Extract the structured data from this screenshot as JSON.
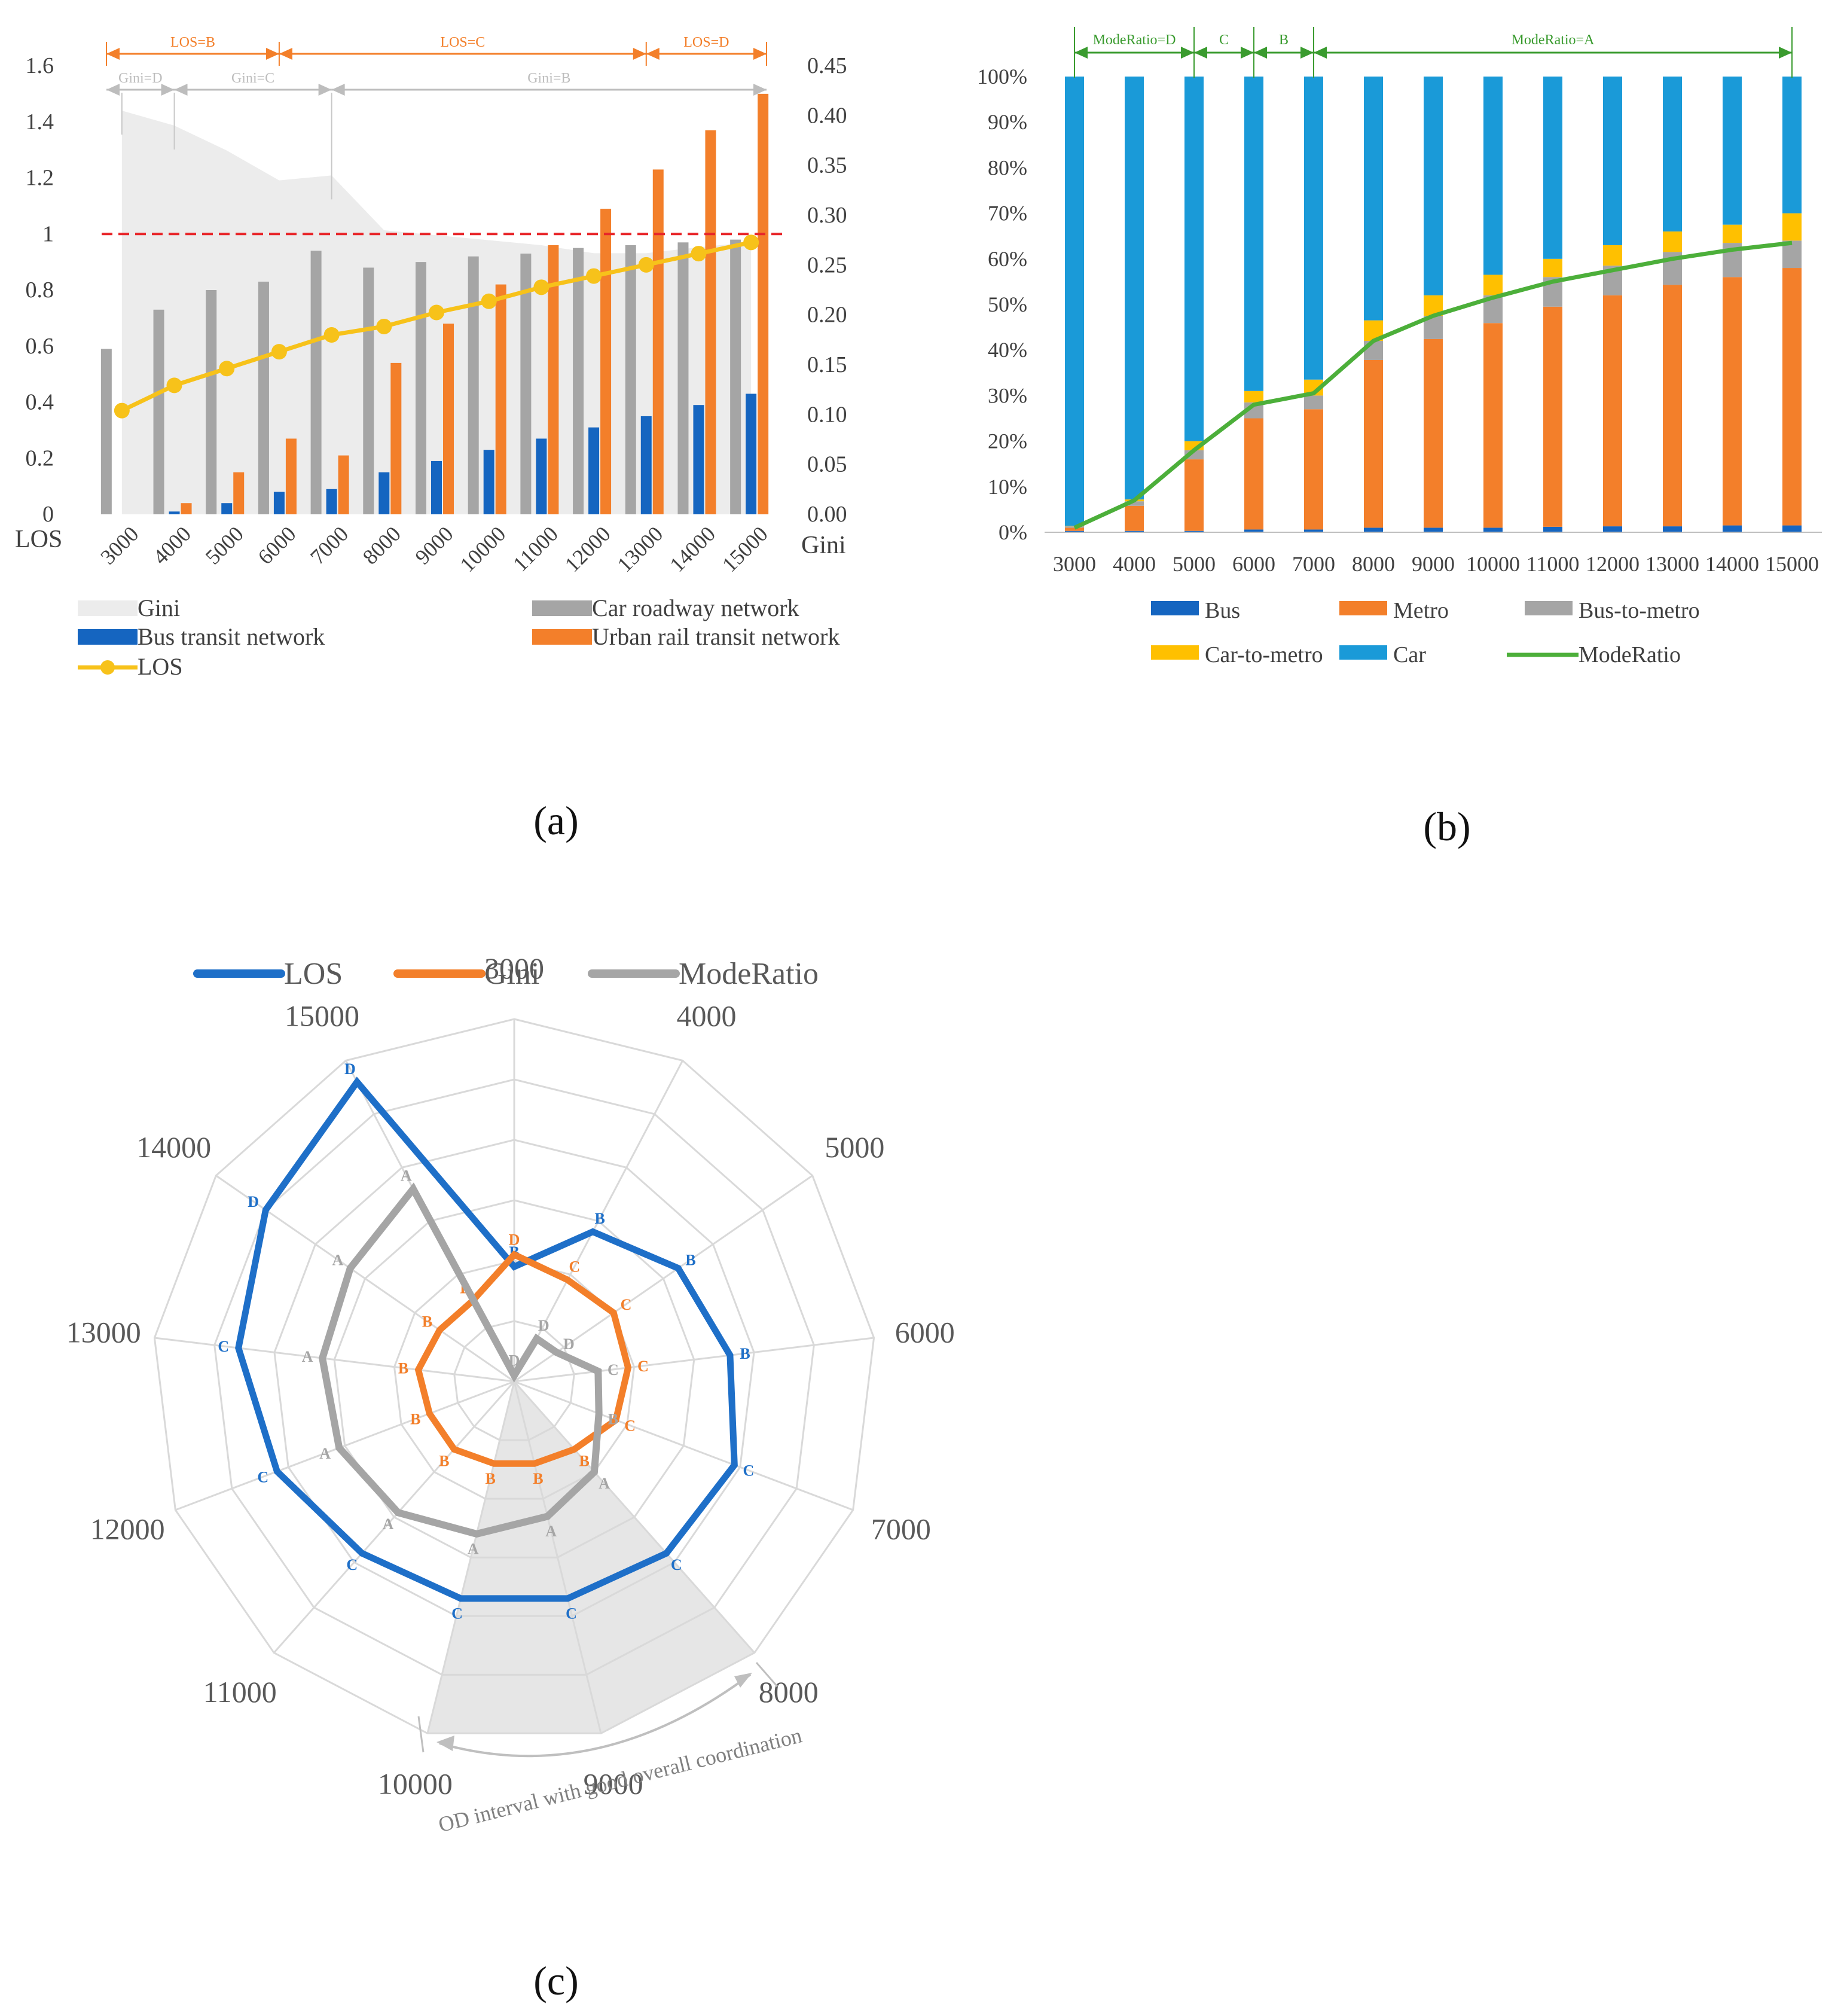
{
  "panels": {
    "a": "(a)",
    "b": "(b)",
    "c": "(c)"
  },
  "chart_data": [
    {
      "id": "a",
      "type": "bar",
      "title": "",
      "xlabel": "",
      "ylabel_left": "LOS",
      "ylabel_right": "Gini",
      "categories": [
        "3000",
        "4000",
        "5000",
        "6000",
        "7000",
        "8000",
        "9000",
        "10000",
        "11000",
        "12000",
        "13000",
        "14000",
        "15000"
      ],
      "ylim_left": [
        0,
        1.6
      ],
      "ylim_right": [
        0,
        0.45
      ],
      "left_ticks": [
        "0",
        "0.2",
        "0.4",
        "0.6",
        "0.8",
        "1",
        "1.2",
        "1.4",
        "1.6"
      ],
      "right_ticks": [
        "0.00",
        "0.05",
        "0.10",
        "0.15",
        "0.20",
        "0.25",
        "0.30",
        "0.35",
        "0.40",
        "0.45"
      ],
      "reference_line": 1,
      "series": [
        {
          "name": "Gini",
          "kind": "area",
          "axis": "right",
          "color": "#ececec",
          "values": [
            0.405,
            0.39,
            0.365,
            0.335,
            0.34,
            0.285,
            0.28,
            0.275,
            0.27,
            0.262,
            0.262,
            0.268,
            0.273
          ]
        },
        {
          "name": "Car roadway network",
          "kind": "bar",
          "axis": "left",
          "color": "#a5a5a5",
          "values": [
            0.59,
            0.73,
            0.8,
            0.83,
            0.94,
            0.88,
            0.9,
            0.92,
            0.93,
            0.95,
            0.96,
            0.97,
            0.98
          ]
        },
        {
          "name": "Bus transit network",
          "kind": "bar",
          "axis": "left",
          "color": "#1565c0",
          "values": [
            0.0,
            0.01,
            0.04,
            0.08,
            0.09,
            0.15,
            0.19,
            0.23,
            0.27,
            0.31,
            0.35,
            0.39,
            0.43
          ]
        },
        {
          "name": "Urban rail transit network",
          "kind": "bar",
          "axis": "left",
          "color": "#f37f2a",
          "values": [
            0.0,
            0.04,
            0.15,
            0.27,
            0.21,
            0.54,
            0.68,
            0.82,
            0.96,
            1.09,
            1.23,
            1.37,
            1.5
          ]
        },
        {
          "name": "LOS",
          "kind": "line",
          "axis": "left",
          "color": "#f7c21a",
          "values": [
            0.37,
            0.46,
            0.52,
            0.58,
            0.64,
            0.67,
            0.72,
            0.76,
            0.81,
            0.85,
            0.89,
            0.93,
            0.97
          ]
        }
      ],
      "los_intervals": [
        {
          "label": "LOS=B",
          "from": "3000",
          "to": "6000"
        },
        {
          "label": "LOS=C",
          "from": "6000",
          "to": "13000"
        },
        {
          "label": "LOS=D",
          "from": "13000",
          "to": "15000"
        }
      ],
      "gini_intervals": [
        {
          "label": "Gini=D",
          "from": "3000",
          "to": "4000"
        },
        {
          "label": "Gini=C",
          "from": "4000",
          "to": "7000"
        },
        {
          "label": "Gini=B",
          "from": "7000",
          "to": "15000"
        }
      ],
      "legend": [
        "Gini",
        "Car roadway network",
        "Bus transit network",
        "Urban rail transit network",
        "LOS"
      ]
    },
    {
      "id": "b",
      "type": "bar",
      "stacked": true,
      "title": "",
      "xlabel": "",
      "ylabel": "",
      "categories": [
        "3000",
        "4000",
        "5000",
        "6000",
        "7000",
        "8000",
        "9000",
        "10000",
        "11000",
        "12000",
        "13000",
        "14000",
        "15000"
      ],
      "ylim": [
        0,
        100
      ],
      "y_ticks": [
        "0%",
        "10%",
        "20%",
        "30%",
        "40%",
        "50%",
        "60%",
        "70%",
        "80%",
        "90%",
        "100%"
      ],
      "series": [
        {
          "name": "Bus",
          "color": "#1565c0",
          "values": [
            0.3,
            0.3,
            0.3,
            0.6,
            0.6,
            1.0,
            1.0,
            1.0,
            1.2,
            1.3,
            1.3,
            1.5,
            1.5
          ]
        },
        {
          "name": "Metro",
          "color": "#f37f2a",
          "values": [
            0.7,
            5.5,
            15.7,
            24.4,
            26.4,
            36.8,
            41.4,
            44.9,
            48.3,
            50.7,
            53.0,
            54.5,
            56.5
          ]
        },
        {
          "name": "Bus-to-metro",
          "color": "#a5a5a5",
          "values": [
            0.3,
            1.0,
            2.0,
            3.5,
            3.0,
            4.2,
            5.1,
            6.1,
            6.5,
            6.5,
            7.2,
            7.5,
            6.0
          ]
        },
        {
          "name": "Car-to-metro",
          "color": "#ffc000",
          "values": [
            0.1,
            0.4,
            2.0,
            2.5,
            3.5,
            4.5,
            4.5,
            4.5,
            4.0,
            4.5,
            4.5,
            4.0,
            6.0
          ]
        },
        {
          "name": "Car",
          "color": "#1a9ad8",
          "values": [
            98.6,
            92.8,
            80.0,
            69.0,
            66.5,
            53.5,
            48.0,
            43.5,
            40.0,
            37.0,
            34.0,
            32.5,
            30.0
          ]
        }
      ],
      "lines": [
        {
          "name": "ModeRatio",
          "color": "#4caf3a",
          "values": [
            1.0,
            7.0,
            18.0,
            28.0,
            30.5,
            42.0,
            47.5,
            51.5,
            55.0,
            57.5,
            60.0,
            62.0,
            63.5
          ]
        }
      ],
      "moderatio_intervals": [
        {
          "label": "ModeRatio=D",
          "from": "3000",
          "to": "5000"
        },
        {
          "label": "C",
          "from": "5000",
          "to": "6000"
        },
        {
          "label": "B",
          "from": "6000",
          "to": "7000"
        },
        {
          "label": "ModeRatio=A",
          "from": "7000",
          "to": "15000"
        }
      ],
      "legend": [
        "Bus",
        "Metro",
        "Bus-to-metro",
        "Car-to-metro",
        "Car",
        "ModeRatio"
      ]
    },
    {
      "id": "c",
      "type": "radar",
      "title": "",
      "axes": [
        "3000",
        "4000",
        "5000",
        "6000",
        "7000",
        "8000",
        "9000",
        "10000",
        "11000",
        "12000",
        "13000",
        "14000",
        "15000"
      ],
      "rings": 6,
      "series": [
        {
          "name": "LOS",
          "color": "#1e6fc8",
          "values": [
            1.9,
            2.8,
            3.3,
            3.6,
            3.9,
            3.8,
            3.7,
            3.7,
            3.8,
            4.2,
            4.6,
            5.0,
            5.6
          ],
          "grades": [
            "B",
            "B",
            "B",
            "B",
            "C",
            "C",
            "C",
            "C",
            "C",
            "C",
            "C",
            "D",
            "D"
          ]
        },
        {
          "name": "Gini",
          "color": "#f37f2a",
          "values": [
            2.1,
            1.9,
            2.0,
            1.9,
            1.8,
            1.5,
            1.4,
            1.4,
            1.5,
            1.5,
            1.6,
            1.5,
            1.5
          ],
          "grades": [
            "D",
            "C",
            "C",
            "C",
            "C",
            "B",
            "B",
            "B",
            "B",
            "B",
            "B",
            "B",
            "B"
          ]
        },
        {
          "name": "ModeRatio",
          "color": "#a5a5a5",
          "values": [
            0.1,
            0.8,
            0.85,
            1.4,
            1.5,
            2.0,
            2.3,
            2.6,
            2.9,
            3.1,
            3.2,
            3.3,
            3.6
          ],
          "grades": [
            "D",
            "D",
            "D",
            "C",
            "B",
            "A",
            "A",
            "A",
            "A",
            "A",
            "A",
            "A",
            "A"
          ]
        }
      ],
      "highlight_interval": {
        "from": "8000",
        "to": "10000",
        "label": "OD interval with good overall coordination"
      },
      "legend": [
        "LOS",
        "Gini",
        "ModeRatio"
      ]
    }
  ]
}
